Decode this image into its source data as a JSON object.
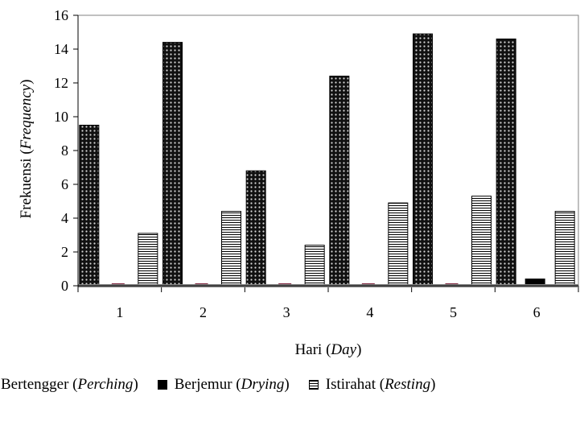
{
  "chart_data": {
    "type": "bar",
    "categories": [
      "1",
      "2",
      "3",
      "4",
      "5",
      "6"
    ],
    "series": [
      {
        "name": "Bertengger (Perching)",
        "values": [
          9.5,
          14.4,
          6.8,
          12.4,
          14.9,
          14.6
        ]
      },
      {
        "name": "Berjemur (Drying)",
        "values": [
          0,
          0,
          0,
          0,
          0,
          0.4
        ]
      },
      {
        "name": "Istirahat (Resting)",
        "values": [
          3.1,
          4.4,
          2.4,
          4.9,
          5.3,
          4.4
        ]
      }
    ],
    "ylim": [
      0,
      16
    ],
    "yticks": [
      "0",
      "2",
      "4",
      "6",
      "8",
      "10",
      "12",
      "14",
      "16"
    ],
    "ylabel": {
      "main": "Frekuensi (",
      "italic": "Frequency",
      "end": ")"
    },
    "xlabel": {
      "main": "Hari (",
      "italic": "Day",
      "end": ")"
    },
    "grid": false,
    "legend_position": "bottom",
    "legend": [
      {
        "main": "Bertengger (",
        "italic": "Perching",
        "end": ")",
        "pattern": "dots"
      },
      {
        "main": "Berjemur (",
        "italic": "Drying",
        "end": ")",
        "pattern": "solid"
      },
      {
        "main": "Istirahat (",
        "italic": "Resting",
        "end": ")",
        "pattern": "lines"
      }
    ],
    "colors": {
      "perching": "#111111",
      "drying": "#000000",
      "resting": "#ffffff",
      "floor": "#808080",
      "floor_marker": "#7a1f3a"
    }
  }
}
